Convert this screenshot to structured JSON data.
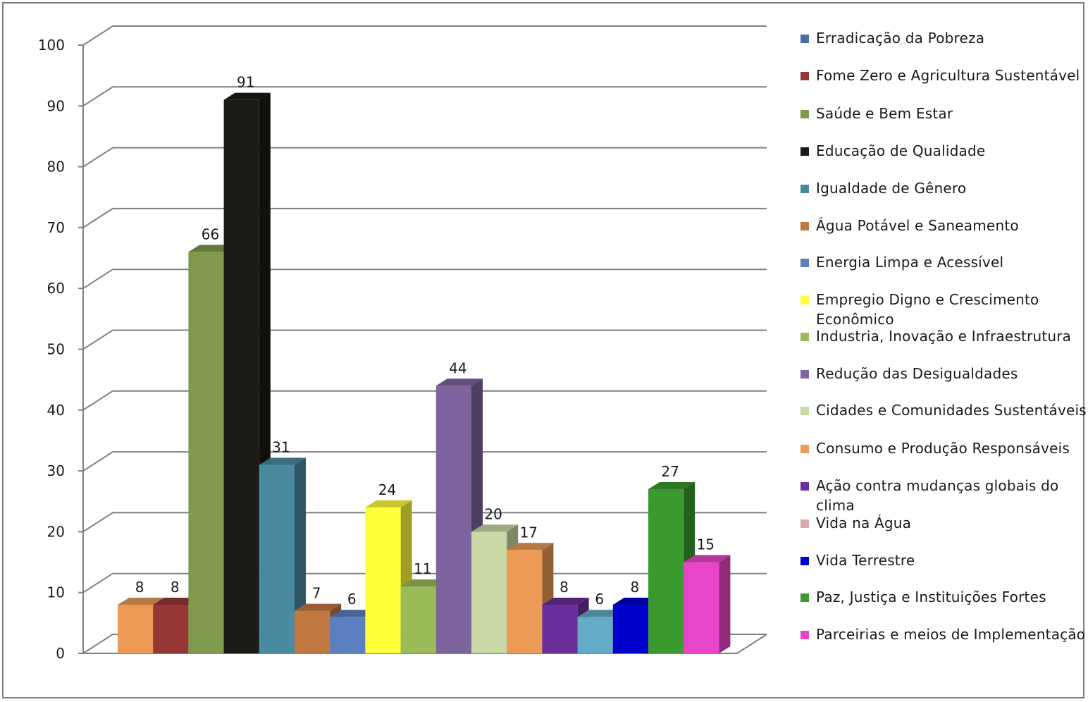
{
  "chart_data": {
    "type": "bar",
    "title": "",
    "xlabel": "",
    "ylabel": "",
    "ylim": [
      0,
      100
    ],
    "y_ticks": [
      0,
      10,
      20,
      30,
      40,
      50,
      60,
      70,
      80,
      90,
      100
    ],
    "grid": true,
    "style": "3d-columns",
    "legend_position": "right",
    "categories": [
      "Erradicação da Pobreza",
      "Fome Zero e Agricultura Sustentável",
      "Saúde e Bem Estar",
      "Educação de Qualidade",
      "Igualdade de Gênero",
      "Água Potável e Saneamento",
      "Energia Limpa e Acessível",
      "Empregio Digno e Crescimento Econômico",
      "Industria, Inovação e Infraestrutura",
      "Redução das Desigualdades",
      "Cidades e Comunidades Sustentáveis",
      "Consumo e Produção Responsáveis",
      "Ação contra mudanças globais do clima",
      "Vida na Água",
      "Vida Terrestre",
      "Paz, Justiça e Instituições Fortes",
      "Parceirias e meios de Implementação"
    ],
    "legend_colors": [
      "#4a6fa5",
      "#953735",
      "#7f9a4a",
      "#1c1a14",
      "#4a8aa0",
      "#c07840",
      "#5b80bf",
      "#ffff3a",
      "#9bbb59",
      "#7e649e",
      "#c8d9a5",
      "#ec9b56",
      "#6a2e9a",
      "#d8aaaa",
      "#0000cc",
      "#3a9a2e",
      "#e845c8"
    ],
    "bars": [
      {
        "value": 8,
        "label": "8",
        "color": "#ec9b56"
      },
      {
        "value": 8,
        "label": "8",
        "color": "#953735"
      },
      {
        "value": 66,
        "label": "66",
        "color": "#7f9a4a"
      },
      {
        "value": 91,
        "label": "91",
        "color": "#1c1a14"
      },
      {
        "value": 31,
        "label": "31",
        "color": "#4a8aa0"
      },
      {
        "value": 7,
        "label": "7",
        "color": "#c07840"
      },
      {
        "value": 6,
        "label": "6",
        "color": "#5b80bf"
      },
      {
        "value": 24,
        "label": "24",
        "color": "#ffff3a"
      },
      {
        "value": 11,
        "label": "11",
        "color": "#9bbb59"
      },
      {
        "value": 44,
        "label": "44",
        "color": "#7e649e"
      },
      {
        "value": 20,
        "label": "20",
        "color": "#c8d9a5"
      },
      {
        "value": 17,
        "label": "17",
        "color": "#ec9b56"
      },
      {
        "value": 8,
        "label": "8",
        "color": "#6a2e9a"
      },
      {
        "value": 6,
        "label": "6",
        "color": "#63abc6"
      },
      {
        "value": 8,
        "label": "8",
        "color": "#0000cc"
      },
      {
        "value": 27,
        "label": "27",
        "color": "#3a9a2e"
      },
      {
        "value": 15,
        "label": "15",
        "color": "#e845c8"
      }
    ]
  },
  "legend": {
    "items": [
      {
        "label": "Erradicação da Pobreza",
        "color": "#4a6fa5"
      },
      {
        "label": "Fome Zero e Agricultura Sustentável",
        "color": "#953735"
      },
      {
        "label": "Saúde e Bem Estar",
        "color": "#7f9a4a"
      },
      {
        "label": "Educação de Qualidade",
        "color": "#1c1a14"
      },
      {
        "label": "Igualdade de Gênero",
        "color": "#4a8aa0"
      },
      {
        "label": "Água Potável e Saneamento",
        "color": "#c07840"
      },
      {
        "label": "Energia Limpa e Acessível",
        "color": "#5b80bf"
      },
      {
        "label": "Empregio Digno e Crescimento Econômico",
        "color": "#ffff3a"
      },
      {
        "label": "Industria, Inovação e Infraestrutura",
        "color": "#9bbb59"
      },
      {
        "label": "Redução das Desigualdades",
        "color": "#7e649e"
      },
      {
        "label": "Cidades e Comunidades Sustentáveis",
        "color": "#c8d9a5"
      },
      {
        "label": "Consumo e Produção Responsáveis",
        "color": "#ec9b56"
      },
      {
        "label": "Ação contra mudanças globais do clima",
        "color": "#6a2e9a"
      },
      {
        "label": "Vida na Água",
        "color": "#d8aaaa"
      },
      {
        "label": "Vida Terrestre",
        "color": "#0000cc"
      },
      {
        "label": "Paz, Justiça e Instituições Fortes",
        "color": "#3a9a2e"
      },
      {
        "label": "Parceirias e meios de Implementação",
        "color": "#e845c8"
      }
    ]
  }
}
